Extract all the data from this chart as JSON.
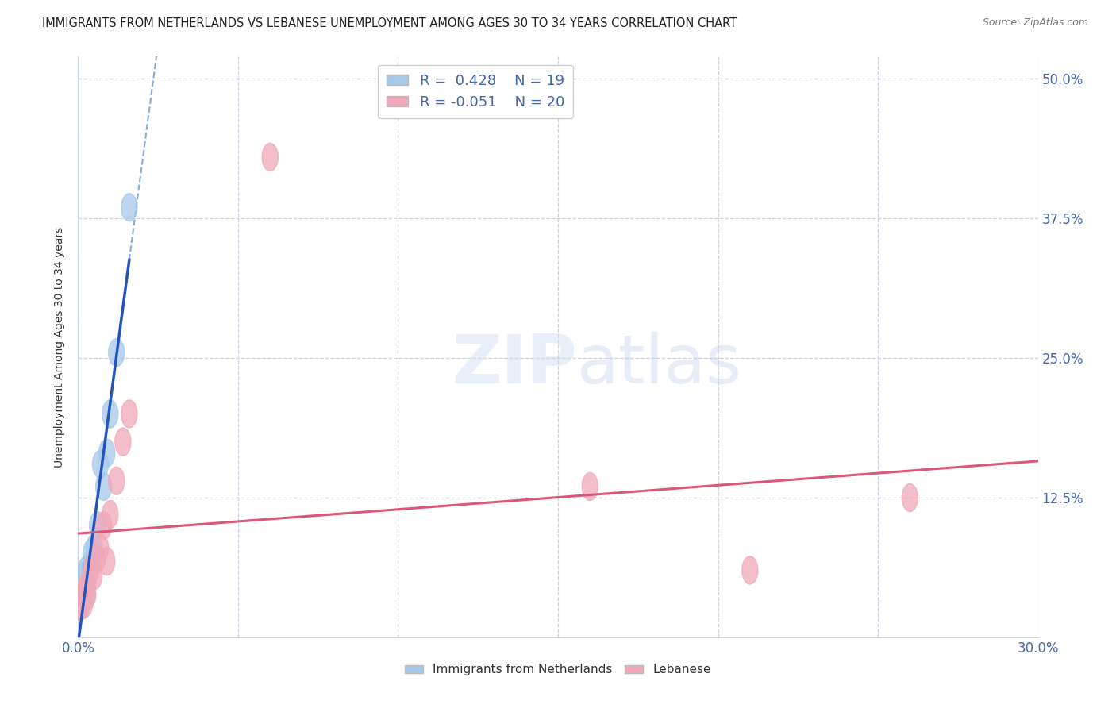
{
  "title": "IMMIGRANTS FROM NETHERLANDS VS LEBANESE UNEMPLOYMENT AMONG AGES 30 TO 34 YEARS CORRELATION CHART",
  "source": "Source: ZipAtlas.com",
  "ylabel": "Unemployment Among Ages 30 to 34 years",
  "xlim": [
    0.0,
    0.3
  ],
  "ylim": [
    0.0,
    0.52
  ],
  "xticks": [
    0.0,
    0.05,
    0.1,
    0.15,
    0.2,
    0.25,
    0.3
  ],
  "ytick_positions": [
    0.0,
    0.125,
    0.25,
    0.375,
    0.5
  ],
  "yticklabels_right": [
    "",
    "12.5%",
    "25.0%",
    "37.5%",
    "50.0%"
  ],
  "blue_R": 0.428,
  "blue_N": 19,
  "pink_R": -0.051,
  "pink_N": 20,
  "blue_color": "#a8c8ea",
  "pink_color": "#f0a8b8",
  "blue_line_color": "#2255bb",
  "pink_line_color": "#dd5577",
  "blue_dashed_color": "#88aadd",
  "grid_color": "#c8d4e4",
  "background_color": "#ffffff",
  "blue_scatter_x": [
    0.0005,
    0.001,
    0.001,
    0.0015,
    0.002,
    0.002,
    0.0025,
    0.003,
    0.003,
    0.004,
    0.004,
    0.005,
    0.006,
    0.007,
    0.008,
    0.009,
    0.01,
    0.012,
    0.016
  ],
  "blue_scatter_y": [
    0.03,
    0.04,
    0.028,
    0.035,
    0.055,
    0.042,
    0.06,
    0.048,
    0.038,
    0.065,
    0.075,
    0.08,
    0.1,
    0.155,
    0.135,
    0.165,
    0.2,
    0.255,
    0.385
  ],
  "pink_scatter_x": [
    0.0005,
    0.001,
    0.002,
    0.002,
    0.003,
    0.003,
    0.004,
    0.005,
    0.006,
    0.007,
    0.008,
    0.009,
    0.01,
    0.012,
    0.014,
    0.016,
    0.06,
    0.16,
    0.21,
    0.26
  ],
  "pink_scatter_y": [
    0.028,
    0.035,
    0.042,
    0.03,
    0.048,
    0.038,
    0.06,
    0.055,
    0.07,
    0.08,
    0.1,
    0.068,
    0.11,
    0.14,
    0.175,
    0.2,
    0.43,
    0.135,
    0.06,
    0.125
  ],
  "title_fontsize": 10.5,
  "axis_label_fontsize": 10,
  "tick_fontsize": 12,
  "legend_fontsize": 13
}
